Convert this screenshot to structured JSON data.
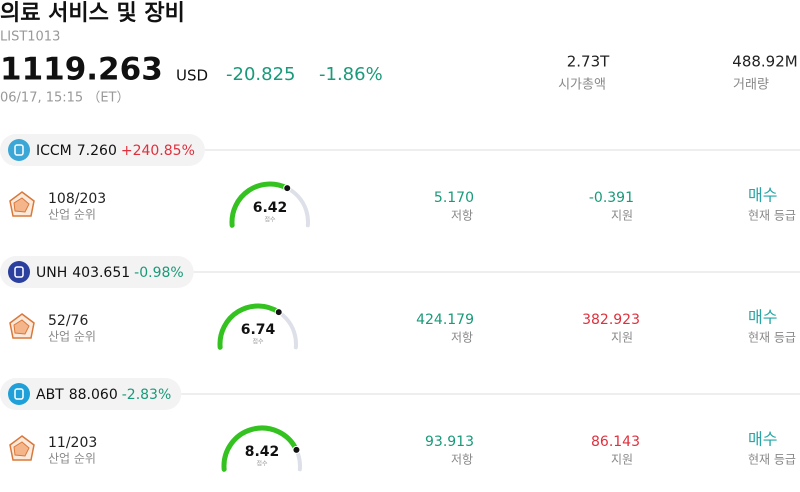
{
  "header": {
    "title": "의료 서비스 및 장비",
    "code": "LIST1013",
    "price": "1119.263",
    "currency": "USD",
    "change": "-20.825",
    "change_pct": "-1.86%",
    "time": "06/17, 15:15 （ET）",
    "stats": [
      {
        "value": "2.73T",
        "label": "시가총액"
      },
      {
        "value": "488.92M",
        "label": "거래량"
      }
    ]
  },
  "stocks": [
    {
      "ticker": "ICCM",
      "price": "7.260",
      "change": "+240.85%",
      "rank": "108/203",
      "rank_label": "산업 순위",
      "score": 6.42,
      "score_label": "점수",
      "resistance": "5.170",
      "resistance_label": "저항",
      "support": "-0.391",
      "support_label": "지원",
      "rating": "매수",
      "rating_label": "현재 등급"
    },
    {
      "ticker": "UNH",
      "price": "403.651",
      "change": "-0.98%",
      "rank": "52/76",
      "rank_label": "산업 순위",
      "score": 6.74,
      "score_label": "점수",
      "resistance": "424.179",
      "resistance_label": "저항",
      "support": "382.923",
      "support_label": "지원",
      "rating": "매수",
      "rating_label": "현재 등급"
    },
    {
      "ticker": "ABT",
      "price": "88.060",
      "change": "-2.83%",
      "rank": "11/203",
      "rank_label": "산업 순위",
      "score": 8.42,
      "score_label": "점수",
      "resistance": "93.913",
      "resistance_label": "저항",
      "support": "86.143",
      "support_label": "지원",
      "rating": "매수",
      "rating_label": "현재 등급"
    }
  ]
}
